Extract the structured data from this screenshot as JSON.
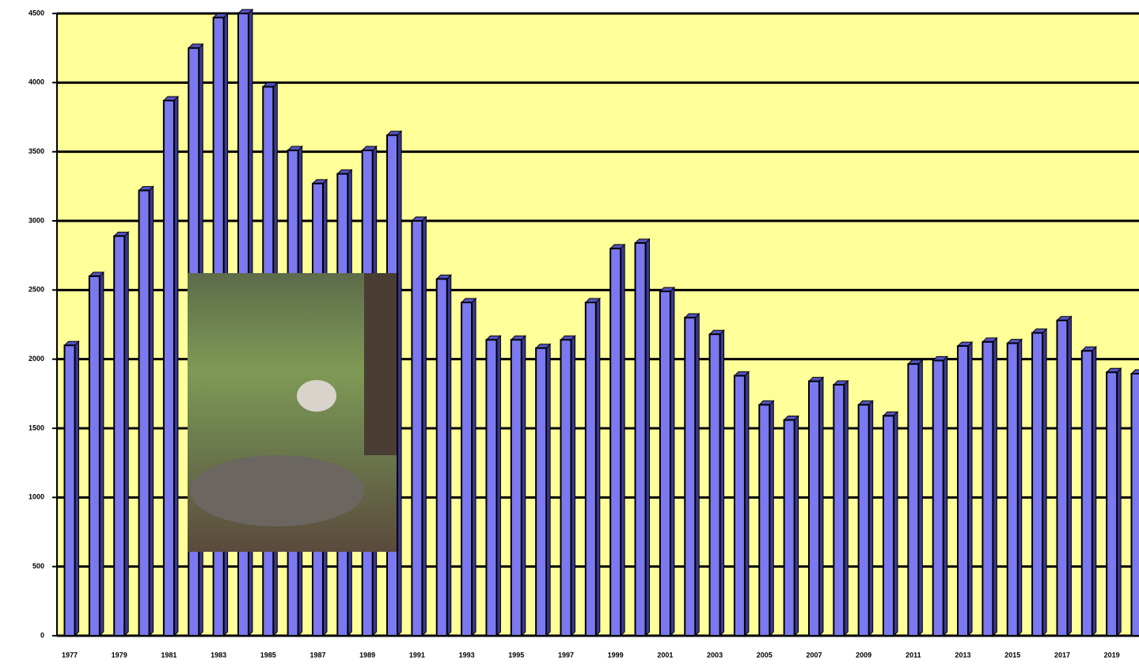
{
  "chart_data": {
    "type": "bar",
    "categories": [
      "1977",
      null,
      "1979",
      null,
      "1981",
      null,
      "1983",
      null,
      "1985",
      null,
      "1987",
      null,
      "1989",
      null,
      "1991",
      null,
      "1993",
      null,
      "1995",
      null,
      "1997",
      null,
      "1999",
      null,
      "2001",
      null,
      "2003",
      null,
      "2005",
      null,
      "2007",
      null,
      "2009",
      null,
      "2011",
      null,
      "2013",
      null,
      "2015",
      null,
      "2017",
      null,
      "2019",
      null
    ],
    "values": [
      2100,
      2600,
      2890,
      3220,
      3870,
      4250,
      4470,
      4500,
      3970,
      3510,
      3270,
      3340,
      3510,
      3620,
      3000,
      2580,
      2410,
      2140,
      2140,
      2080,
      2140,
      2410,
      2800,
      2840,
      2490,
      2300,
      2180,
      1880,
      1670,
      1560,
      1840,
      1815,
      1670,
      1590,
      1965,
      1990,
      2095,
      2125,
      2115,
      2190,
      2280,
      2060,
      1905,
      1895
    ],
    "color": "#7b78f0",
    "ylim": [
      0,
      4500
    ],
    "yticks": [
      0,
      500,
      1000,
      1500,
      2000,
      2500,
      3000,
      3500,
      4000,
      4500
    ],
    "grid": true
  }
}
